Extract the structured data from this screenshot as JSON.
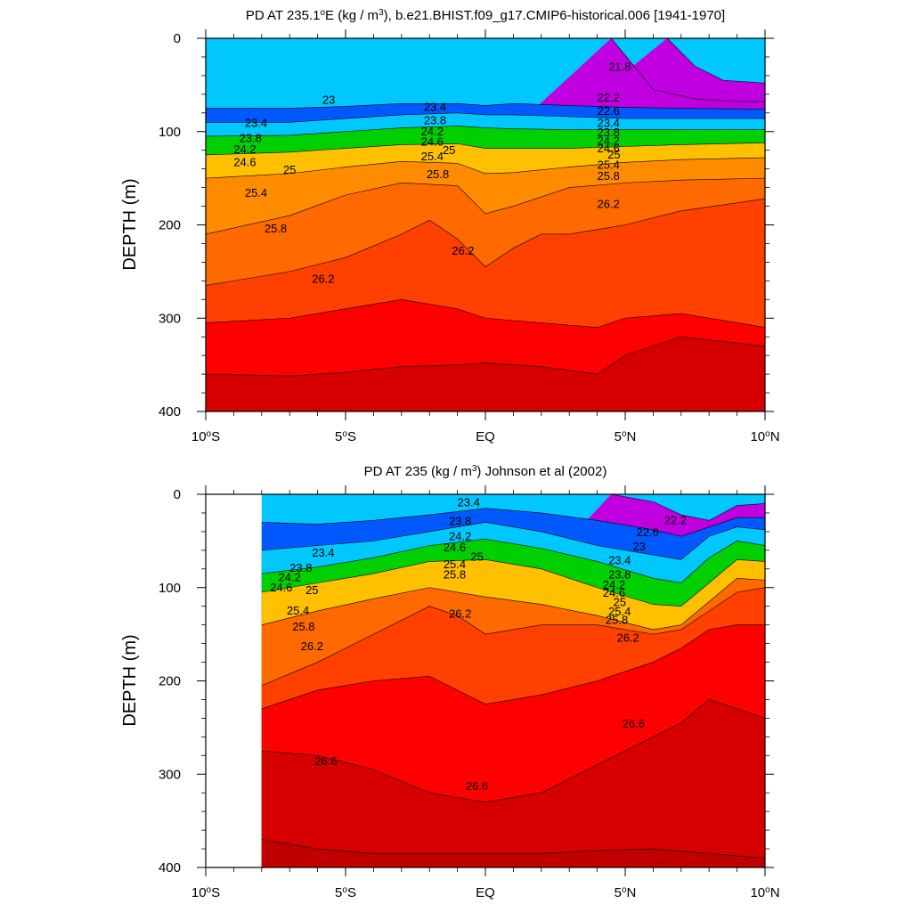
{
  "chart_data": [
    {
      "type": "heatmap",
      "title_prefix": "PD AT 235.1",
      "title_sup1": "o",
      "title_mid": "E (kg / m",
      "title_sup2": "3",
      "title_suffix": "), b.e21.BHIST.f09_g17.CMIP6-historical.006 [1941-1970]",
      "xlabel": "",
      "ylabel": "DEPTH (m)",
      "x_ticks": [
        {
          "value": -10,
          "base": "10",
          "sup": "o",
          "hemi": "S"
        },
        {
          "value": -5,
          "base": "5",
          "sup": "o",
          "hemi": "S"
        },
        {
          "value": 0,
          "base": "EQ",
          "sup": "",
          "hemi": ""
        },
        {
          "value": 5,
          "base": "5",
          "sup": "o",
          "hemi": "N"
        },
        {
          "value": 10,
          "base": "10",
          "sup": "o",
          "hemi": "N"
        }
      ],
      "y_ticks": [
        "0",
        "100",
        "200",
        "300",
        "400"
      ],
      "xlim": [
        -10,
        10
      ],
      "ylim": [
        0,
        400
      ],
      "data_xlim": [
        -10,
        10
      ],
      "contour_levels": [
        21.0,
        21.4,
        21.8,
        22.2,
        22.6,
        23.0,
        23.4,
        23.8,
        24.2,
        24.6,
        25.0,
        25.4,
        25.8,
        26.2,
        26.6,
        27.0
      ],
      "contours": [
        {
          "level": 22.0,
          "x": [
            6.5,
            7.5,
            8.5,
            10
          ],
          "y": [
            0,
            30,
            45,
            48
          ]
        },
        {
          "level": 22.2,
          "x": [
            4.5,
            6,
            7.5,
            9,
            10
          ],
          "y": [
            0,
            55,
            65,
            68,
            68
          ]
        },
        {
          "level": 23.0,
          "x": [
            -10,
            -7,
            -5,
            -3,
            -1,
            0,
            1,
            3,
            5,
            7,
            10
          ],
          "y": [
            75,
            75,
            73,
            70,
            70,
            72,
            70,
            72,
            74,
            75,
            76
          ]
        },
        {
          "level": 23.4,
          "x": [
            -10,
            -7,
            -5,
            -3,
            -1,
            0,
            1,
            3,
            5,
            7,
            10
          ],
          "y": [
            90,
            90,
            86,
            82,
            80,
            82,
            82,
            84,
            86,
            86,
            86
          ]
        },
        {
          "level": 24.2,
          "x": [
            -10,
            -7,
            -5,
            -3,
            -1,
            0,
            1,
            3,
            5,
            7,
            10
          ],
          "y": [
            105,
            104,
            100,
            96,
            94,
            96,
            97,
            98,
            98,
            98,
            98
          ]
        },
        {
          "level": 25.0,
          "x": [
            -10,
            -7,
            -5,
            -3,
            -1,
            0,
            1,
            3,
            5,
            7,
            10
          ],
          "y": [
            125,
            122,
            118,
            114,
            113,
            118,
            118,
            118,
            116,
            114,
            112
          ]
        },
        {
          "level": 25.4,
          "x": [
            -10,
            -7,
            -5,
            -3,
            -1,
            0,
            1,
            3,
            5,
            7,
            10
          ],
          "y": [
            150,
            145,
            138,
            132,
            134,
            145,
            144,
            138,
            133,
            130,
            128
          ]
        },
        {
          "level": 25.8,
          "x": [
            -10,
            -7,
            -5,
            -3,
            -1,
            0,
            1,
            3,
            5,
            7,
            10
          ],
          "y": [
            210,
            190,
            168,
            155,
            158,
            188,
            180,
            160,
            155,
            152,
            150
          ]
        },
        {
          "level": 26.2,
          "x": [
            -10,
            -7,
            -5,
            -3,
            -2,
            -1,
            0,
            1,
            2,
            3,
            5,
            7,
            10
          ],
          "y": [
            265,
            250,
            235,
            210,
            195,
            215,
            245,
            225,
            210,
            210,
            200,
            185,
            172
          ]
        },
        {
          "level": 26.6,
          "x": [
            -10,
            -7,
            -5,
            -3,
            -1,
            0,
            2,
            4,
            5,
            7,
            10
          ],
          "y": [
            305,
            300,
            290,
            280,
            290,
            300,
            305,
            310,
            300,
            295,
            310
          ]
        },
        {
          "level": 27.0,
          "x": [
            -10,
            -7,
            -5,
            -3,
            -1,
            0,
            2,
            4,
            5,
            7,
            10
          ],
          "y": [
            360,
            362,
            358,
            352,
            350,
            348,
            352,
            360,
            340,
            320,
            330
          ]
        }
      ],
      "labels": [
        {
          "text": "21.8",
          "x": 4.8,
          "y": 35
        },
        {
          "text": "22.2",
          "x": 4.4,
          "y": 68
        },
        {
          "text": "22.6",
          "x": 4.4,
          "y": 82
        },
        {
          "text": "23",
          "x": -5.6,
          "y": 70
        },
        {
          "text": "23.4",
          "x": -8.2,
          "y": 95
        },
        {
          "text": "23.4",
          "x": -1.8,
          "y": 78
        },
        {
          "text": "23.8",
          "x": -8.4,
          "y": 111
        },
        {
          "text": "23.8",
          "x": -1.8,
          "y": 92
        },
        {
          "text": "24.2",
          "x": -8.6,
          "y": 123
        },
        {
          "text": "24.2",
          "x": -1.9,
          "y": 104
        },
        {
          "text": "24.6",
          "x": -8.6,
          "y": 137
        },
        {
          "text": "24.6",
          "x": -1.9,
          "y": 115
        },
        {
          "text": "25",
          "x": -7.0,
          "y": 145
        },
        {
          "text": "25",
          "x": -1.3,
          "y": 124
        },
        {
          "text": "25.4",
          "x": -8.2,
          "y": 170
        },
        {
          "text": "25.4",
          "x": -1.9,
          "y": 131
        },
        {
          "text": "25.8",
          "x": -7.5,
          "y": 208
        },
        {
          "text": "25.8",
          "x": -1.7,
          "y": 150
        },
        {
          "text": "25.8",
          "x": 4.4,
          "y": 152
        },
        {
          "text": "26.2",
          "x": -5.8,
          "y": 262
        },
        {
          "text": "26.2",
          "x": -0.8,
          "y": 232
        },
        {
          "text": "26.2",
          "x": 4.4,
          "y": 182
        },
        {
          "text": "23.4",
          "x": 4.4,
          "y": 95
        },
        {
          "text": "23.8",
          "x": 4.4,
          "y": 105
        },
        {
          "text": "24.2",
          "x": 4.4,
          "y": 114
        },
        {
          "text": "24.6",
          "x": 4.4,
          "y": 122
        },
        {
          "text": "25",
          "x": 4.6,
          "y": 129
        },
        {
          "text": "25.4",
          "x": 4.4,
          "y": 140
        }
      ]
    },
    {
      "type": "heatmap",
      "title_prefix": "PD AT 235 (kg / m",
      "title_sup1": "",
      "title_mid": "",
      "title_sup2": "3",
      "title_suffix": ") Johnson et al (2002)",
      "xlabel": "",
      "ylabel": "DEPTH (m)",
      "x_ticks": [
        {
          "value": -10,
          "base": "10",
          "sup": "o",
          "hemi": "S"
        },
        {
          "value": -5,
          "base": "5",
          "sup": "o",
          "hemi": "S"
        },
        {
          "value": 0,
          "base": "EQ",
          "sup": "",
          "hemi": ""
        },
        {
          "value": 5,
          "base": "5",
          "sup": "o",
          "hemi": "N"
        },
        {
          "value": 10,
          "base": "10",
          "sup": "o",
          "hemi": "N"
        }
      ],
      "y_ticks": [
        "0",
        "100",
        "200",
        "300",
        "400"
      ],
      "xlim": [
        -10,
        10
      ],
      "ylim": [
        0,
        400
      ],
      "data_xlim": [
        -8,
        10
      ],
      "contour_levels": [
        21.0,
        21.4,
        21.8,
        22.2,
        22.6,
        23.0,
        23.4,
        23.8,
        24.2,
        24.6,
        25.0,
        25.4,
        25.8,
        26.2,
        26.6,
        27.0
      ],
      "contours": [
        {
          "level": 22.2,
          "x": [
            4.5,
            6,
            7,
            8,
            9,
            10
          ],
          "y": [
            0,
            8,
            22,
            28,
            12,
            10
          ]
        },
        {
          "level": 23.0,
          "x": [
            -8,
            -6,
            -4,
            -2,
            0,
            2,
            4,
            6,
            7,
            8,
            9,
            10
          ],
          "y": [
            30,
            32,
            28,
            22,
            15,
            20,
            28,
            38,
            45,
            35,
            25,
            25
          ]
        },
        {
          "level": 23.4,
          "x": [
            -8,
            -6,
            -4,
            -2,
            0,
            2,
            4,
            6,
            7,
            8,
            9,
            10
          ],
          "y": [
            60,
            55,
            50,
            40,
            30,
            40,
            55,
            65,
            70,
            45,
            35,
            38
          ]
        },
        {
          "level": 24.2,
          "x": [
            -8,
            -6,
            -4,
            -2,
            0,
            2,
            4,
            6,
            7,
            8,
            9,
            10
          ],
          "y": [
            85,
            78,
            68,
            55,
            48,
            58,
            72,
            90,
            95,
            68,
            50,
            55
          ]
        },
        {
          "level": 25.0,
          "x": [
            -8,
            -6,
            -4,
            -2,
            0,
            2,
            4,
            6,
            7,
            8,
            9,
            10
          ],
          "y": [
            105,
            95,
            85,
            72,
            70,
            80,
            100,
            118,
            120,
            95,
            70,
            72
          ]
        },
        {
          "level": 25.8,
          "x": [
            -8,
            -6,
            -4,
            -2,
            0,
            2,
            4,
            6,
            7,
            8,
            9,
            10
          ],
          "y": [
            140,
            125,
            112,
            100,
            110,
            118,
            130,
            145,
            140,
            115,
            90,
            92
          ]
        },
        {
          "level": 26.2,
          "x": [
            -8,
            -6,
            -4,
            -2,
            -1,
            0,
            2,
            4,
            6,
            7,
            8,
            9,
            10
          ],
          "y": [
            205,
            180,
            150,
            120,
            130,
            150,
            140,
            140,
            150,
            145,
            125,
            105,
            100
          ]
        },
        {
          "level": 26.6,
          "x": [
            -8,
            -6,
            -4,
            -2,
            -1,
            0,
            2,
            4,
            6,
            7,
            8,
            9,
            10
          ],
          "y": [
            230,
            210,
            200,
            195,
            210,
            225,
            215,
            200,
            180,
            165,
            145,
            140,
            140
          ]
        },
        {
          "level": 27.0,
          "x": [
            -8,
            -6,
            -4,
            -2,
            0,
            2,
            4,
            6,
            7,
            8,
            9,
            10
          ],
          "y": [
            275,
            280,
            295,
            320,
            330,
            320,
            290,
            260,
            245,
            220,
            230,
            240
          ]
        },
        {
          "level": 27.4,
          "x": [
            -8,
            -6,
            -4,
            -2,
            0,
            2,
            4,
            6,
            8,
            10
          ],
          "y": [
            370,
            380,
            385,
            385,
            385,
            385,
            382,
            380,
            385,
            390
          ]
        }
      ],
      "labels": [
        {
          "text": "22.2",
          "x": 6.8,
          "y": 32
        },
        {
          "text": "22.6",
          "x": 5.8,
          "y": 45
        },
        {
          "text": "23",
          "x": 5.5,
          "y": 60
        },
        {
          "text": "23.4",
          "x": -0.6,
          "y": 13
        },
        {
          "text": "23.4",
          "x": -5.8,
          "y": 67
        },
        {
          "text": "23.4",
          "x": 4.8,
          "y": 75
        },
        {
          "text": "23.8",
          "x": -0.9,
          "y": 33
        },
        {
          "text": "23.8",
          "x": -6.6,
          "y": 83
        },
        {
          "text": "23.8",
          "x": 4.8,
          "y": 90
        },
        {
          "text": "24.2",
          "x": -0.9,
          "y": 49
        },
        {
          "text": "24.2",
          "x": -7.0,
          "y": 93
        },
        {
          "text": "24.2",
          "x": 4.6,
          "y": 101
        },
        {
          "text": "24.6",
          "x": -1.1,
          "y": 61
        },
        {
          "text": "24.6",
          "x": -7.3,
          "y": 104
        },
        {
          "text": "24.6",
          "x": 4.6,
          "y": 110
        },
        {
          "text": "25",
          "x": -0.3,
          "y": 71
        },
        {
          "text": "25",
          "x": -6.2,
          "y": 107
        },
        {
          "text": "25",
          "x": 4.8,
          "y": 120
        },
        {
          "text": "25.4",
          "x": -1.1,
          "y": 79
        },
        {
          "text": "25.4",
          "x": -6.7,
          "y": 129
        },
        {
          "text": "25.4",
          "x": 4.8,
          "y": 130
        },
        {
          "text": "25.8",
          "x": -1.1,
          "y": 90
        },
        {
          "text": "25.8",
          "x": -6.5,
          "y": 146
        },
        {
          "text": "25.8",
          "x": 4.7,
          "y": 139
        },
        {
          "text": "26.2",
          "x": -0.9,
          "y": 132
        },
        {
          "text": "26.2",
          "x": -6.2,
          "y": 167
        },
        {
          "text": "26.2",
          "x": 5.1,
          "y": 158
        },
        {
          "text": "26.6",
          "x": 5.3,
          "y": 250
        },
        {
          "text": "26.6",
          "x": -5.7,
          "y": 290
        },
        {
          "text": "26.6",
          "x": -0.3,
          "y": 317
        }
      ]
    }
  ]
}
